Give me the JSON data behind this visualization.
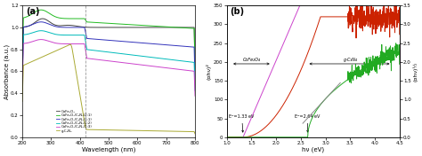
{
  "panel_a": {
    "xlabel": "Wavelength (nm)",
    "ylabel": "Absorbance (a.u.)",
    "xlim": [
      200,
      800
    ],
    "ylim": [
      0.0,
      1.2
    ],
    "yticks": [
      0.0,
      0.2,
      0.4,
      0.6,
      0.8,
      1.0,
      1.2
    ],
    "xticks": [
      200,
      300,
      400,
      500,
      600,
      700,
      800
    ],
    "label": "(a)",
    "dashed_line_x": 420,
    "legend": [
      {
        "label": "CoFe₂O₄",
        "color": "#404040"
      },
      {
        "label": "CoFe₂O₄/C₃N₄(2:1)",
        "color": "#22bb22"
      },
      {
        "label": "CoFe₂O₄/C₃N₄(1:1)",
        "color": "#3333bb"
      },
      {
        "label": "CoFe₂O₄/C₃N₄(1:2)",
        "color": "#00bbbb"
      },
      {
        "label": "CoFe₂O₄/C₃N₄(1:3)",
        "color": "#cc44cc"
      },
      {
        "label": "g-C₃N₄",
        "color": "#aaaa33"
      }
    ]
  },
  "panel_b": {
    "xlabel": "hν (eV)",
    "ylabel_left": "(αhν)²",
    "ylabel_right": "(αhν)½",
    "xlim": [
      1.0,
      4.5
    ],
    "ylim_left": [
      0,
      350
    ],
    "ylim_right": [
      0.0,
      3.5
    ],
    "yticks_left": [
      0,
      50,
      100,
      150,
      200,
      250,
      300,
      350
    ],
    "yticks_right": [
      0.0,
      0.5,
      1.0,
      1.5,
      2.0,
      2.5,
      3.0,
      3.5
    ],
    "xticks": [
      1.0,
      1.5,
      2.0,
      2.5,
      3.0,
      3.5,
      4.0,
      4.5
    ],
    "label": "(b)",
    "eg1": 1.33,
    "eg2": 2.64,
    "ann1_text": "Eᴳ=1.33 eV",
    "ann2_text": "Eᴳ=2.64 eV",
    "arrow_label_left": "CoFe₂O₄",
    "arrow_label_right": "g-C₃N₄",
    "line_CoFe_color": "#cc2200",
    "line_gCN_color": "#22aa22",
    "tangent_CoFe_color": "#cc44cc",
    "tangent_gCN_color": "#888888",
    "noise_start": 3.45,
    "noise_amplitude_cofe": 18,
    "noise_amplitude_gcn": 0.12
  }
}
